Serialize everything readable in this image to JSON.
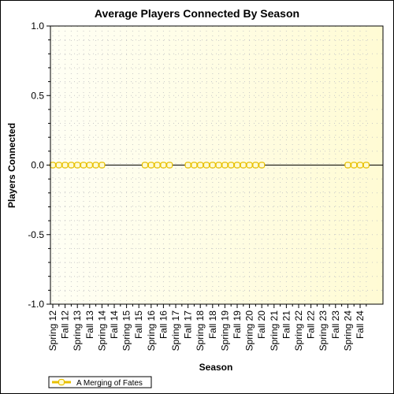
{
  "chart_data": {
    "type": "line",
    "title": "Average Players Connected By Season",
    "xlabel": "Season",
    "ylabel": "Players Connected",
    "categories": [
      "Spring 12",
      "Fall 12",
      "Spring 13",
      "Fall 13",
      "Spring 14",
      "Fall 14",
      "Spring 15",
      "Fall 15",
      "Spring 16",
      "Fall 16",
      "Spring 17",
      "Fall 17",
      "Spring 18",
      "Fall 18",
      "Spring 19",
      "Fall 19",
      "Spring 20",
      "Fall 20",
      "Spring 21",
      "Fall 21",
      "Spring 22",
      "Fall 22",
      "Spring 23",
      "Fall 23",
      "Spring 24",
      "Fall 24"
    ],
    "ylim": [
      -1.0,
      1.0
    ],
    "yticks": [
      "1.0",
      "0.5",
      "0.0",
      "-0.5",
      "-1.0"
    ],
    "series": [
      {
        "name": "A Merging of Fates",
        "color": "#e8c000",
        "x": [
          0,
          0.5,
          1,
          1.5,
          2,
          2.5,
          3,
          3.5,
          4,
          7.5,
          8,
          8.5,
          9,
          9.5,
          11,
          11.5,
          12,
          12.5,
          13,
          13.5,
          14,
          14.5,
          15,
          15.5,
          16,
          16.5,
          17,
          24,
          24.5,
          25,
          25.5
        ],
        "values": [
          0,
          0,
          0,
          0,
          0,
          0,
          0,
          0,
          0,
          0,
          0,
          0,
          0,
          0,
          0,
          0,
          0,
          0,
          0,
          0,
          0,
          0,
          0,
          0,
          0,
          0,
          0,
          0,
          0,
          0,
          0
        ]
      }
    ],
    "grid": true,
    "legend": "bottom-left",
    "background_color": "#fffbd4"
  }
}
